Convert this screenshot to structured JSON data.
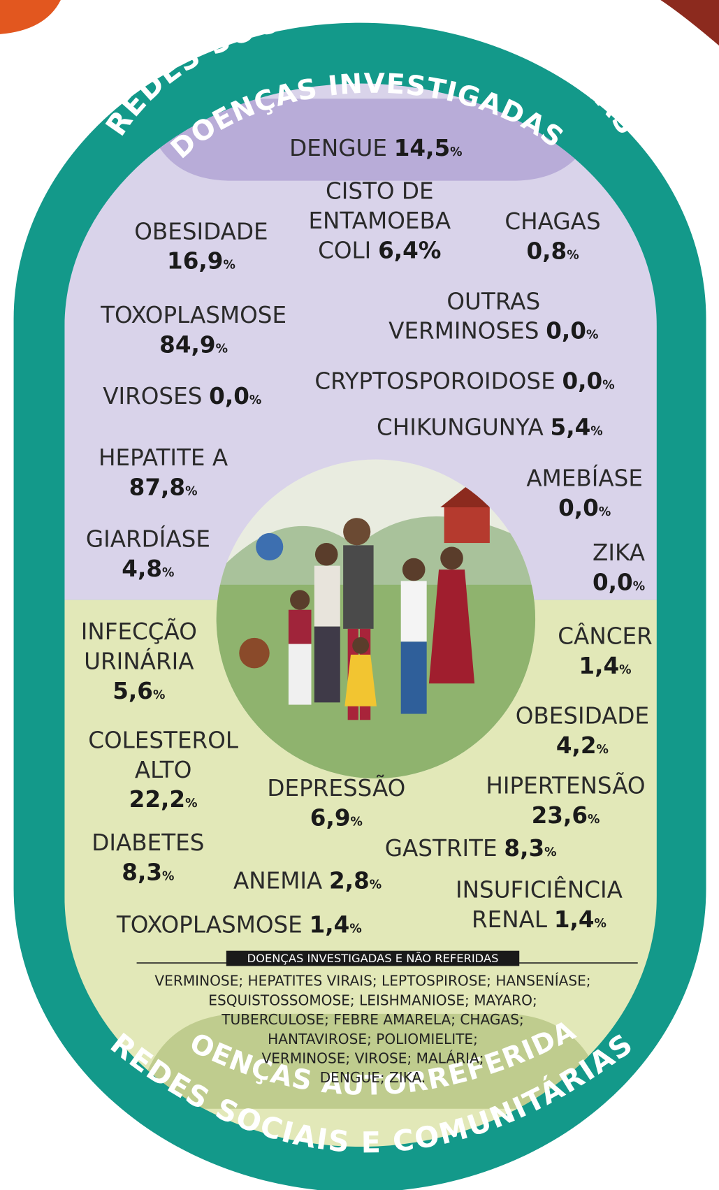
{
  "header": {
    "title": "REDES SOCIAIS E COMUNITÁRIAS",
    "subtitle": "DOENÇAS INVESTIGADAS"
  },
  "investigated": [
    {
      "lines": [
        "DENGUE"
      ],
      "value": "14,5%"
    },
    {
      "lines": [
        "CISTO DE",
        "ENTAMOEBA",
        "COLI"
      ],
      "value": "6,4%"
    },
    {
      "lines": [
        "CHAGAS"
      ],
      "value": "0,8%"
    },
    {
      "lines": [
        "OBESIDADE"
      ],
      "value": "16,9%"
    },
    {
      "lines": [
        "TOXOPLASMOSE"
      ],
      "value": "84,9%"
    },
    {
      "lines": [
        "OUTRAS",
        "VERMINOSES"
      ],
      "value": "0,0%"
    },
    {
      "lines": [
        "VIROSES"
      ],
      "value": "0,0%"
    },
    {
      "lines": [
        "CRYPTOSPOROIDOSE"
      ],
      "value": "0,0%"
    },
    {
      "lines": [
        "CHIKUNGUNYA"
      ],
      "value": "5,4%"
    },
    {
      "lines": [
        "HEPATITE A"
      ],
      "value": "87,8%"
    },
    {
      "lines": [
        "AMEBÍASE"
      ],
      "value": "0,0%"
    },
    {
      "lines": [
        "GIARDÍASE"
      ],
      "value": "4,8%"
    },
    {
      "lines": [
        "ZIKA"
      ],
      "value": "0,0%"
    }
  ],
  "self_reported": [
    {
      "lines": [
        "INFECÇÃO",
        "URINÁRIA"
      ],
      "value": "5,6%"
    },
    {
      "lines": [
        "CÂNCER"
      ],
      "value": "1,4%"
    },
    {
      "lines": [
        "OBESIDADE"
      ],
      "value": "4,2%"
    },
    {
      "lines": [
        "COLESTEROL",
        "ALTO"
      ],
      "value": "22,2%"
    },
    {
      "lines": [
        "DEPRESSÃO"
      ],
      "value": "6,9%"
    },
    {
      "lines": [
        "HIPERTENSÃO"
      ],
      "value": "23,6%"
    },
    {
      "lines": [
        "DIABETES"
      ],
      "value": "8,3%"
    },
    {
      "lines": [
        "GASTRITE"
      ],
      "value": "8,3%"
    },
    {
      "lines": [
        "ANEMIA"
      ],
      "value": "2,8%"
    },
    {
      "lines": [
        "INSUFICIÊNCIA",
        "RENAL"
      ],
      "value": "1,4%"
    },
    {
      "lines": [
        "TOXOPLASMOSE"
      ],
      "value": "1,4%"
    }
  ],
  "footer": {
    "heading": "DOENÇAS INVESTIGADAS E NÃO REFERIDAS",
    "lines": [
      "VERMINOSE; HEPATITES VIRAIS; LEPTOSPIROSE; HANSENÍASE;",
      "ESQUISTOSSOMOSE; LEISHMANIOSE; MAYARO;",
      "TUBERCULOSE; FEBRE AMARELA; CHAGAS;",
      "HANTAVIROSE; POLIOMIELITE;",
      "VERMINOSE; VIROSE; MALÁRIA;",
      "DENGUE; ZIKA."
    ],
    "subtitle": "DOENÇAS AUTORREFERIDAS",
    "title": "REDES SOCIAIS E COMUNITÁRIAS"
  }
}
